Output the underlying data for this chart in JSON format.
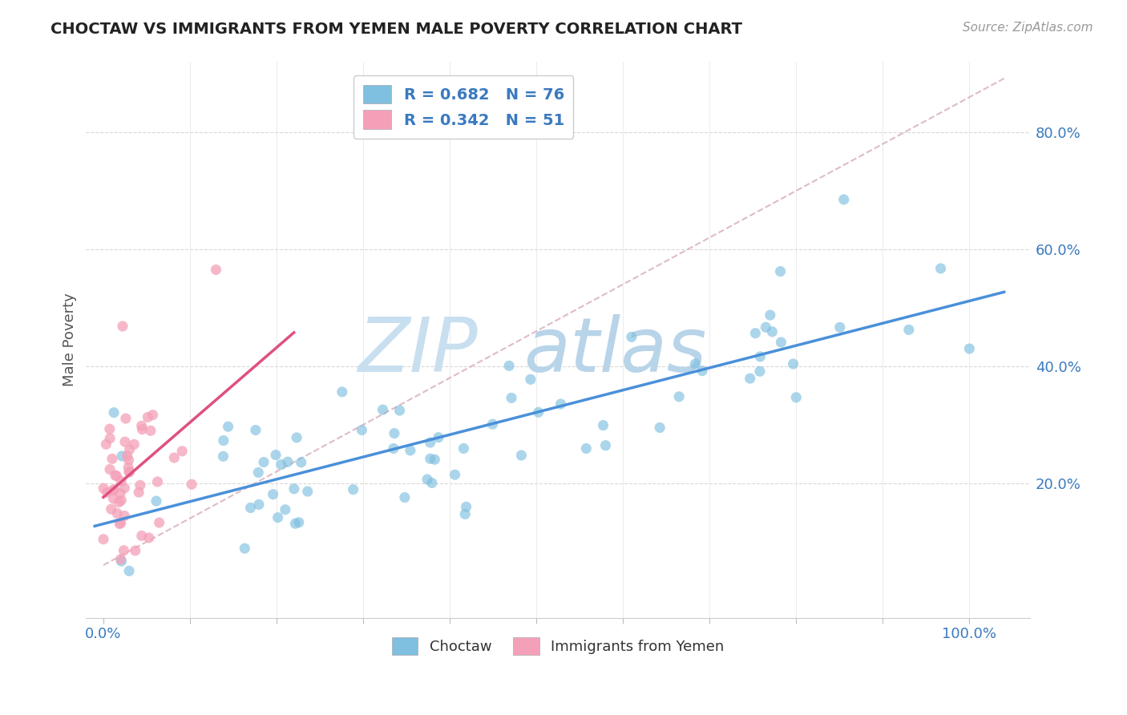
{
  "title": "CHOCTAW VS IMMIGRANTS FROM YEMEN MALE POVERTY CORRELATION CHART",
  "source": "Source: ZipAtlas.com",
  "ylabel": "Male Poverty",
  "blue_color": "#7fbfdf",
  "pink_color": "#f4a0b8",
  "blue_line_color": "#4a90d9",
  "pink_line_color": "#e05080",
  "legend_text_color": "#3a7abf",
  "background_color": "#ffffff",
  "choctaw_R": 0.682,
  "choctaw_N": 76,
  "yemen_R": 0.342,
  "yemen_N": 51
}
